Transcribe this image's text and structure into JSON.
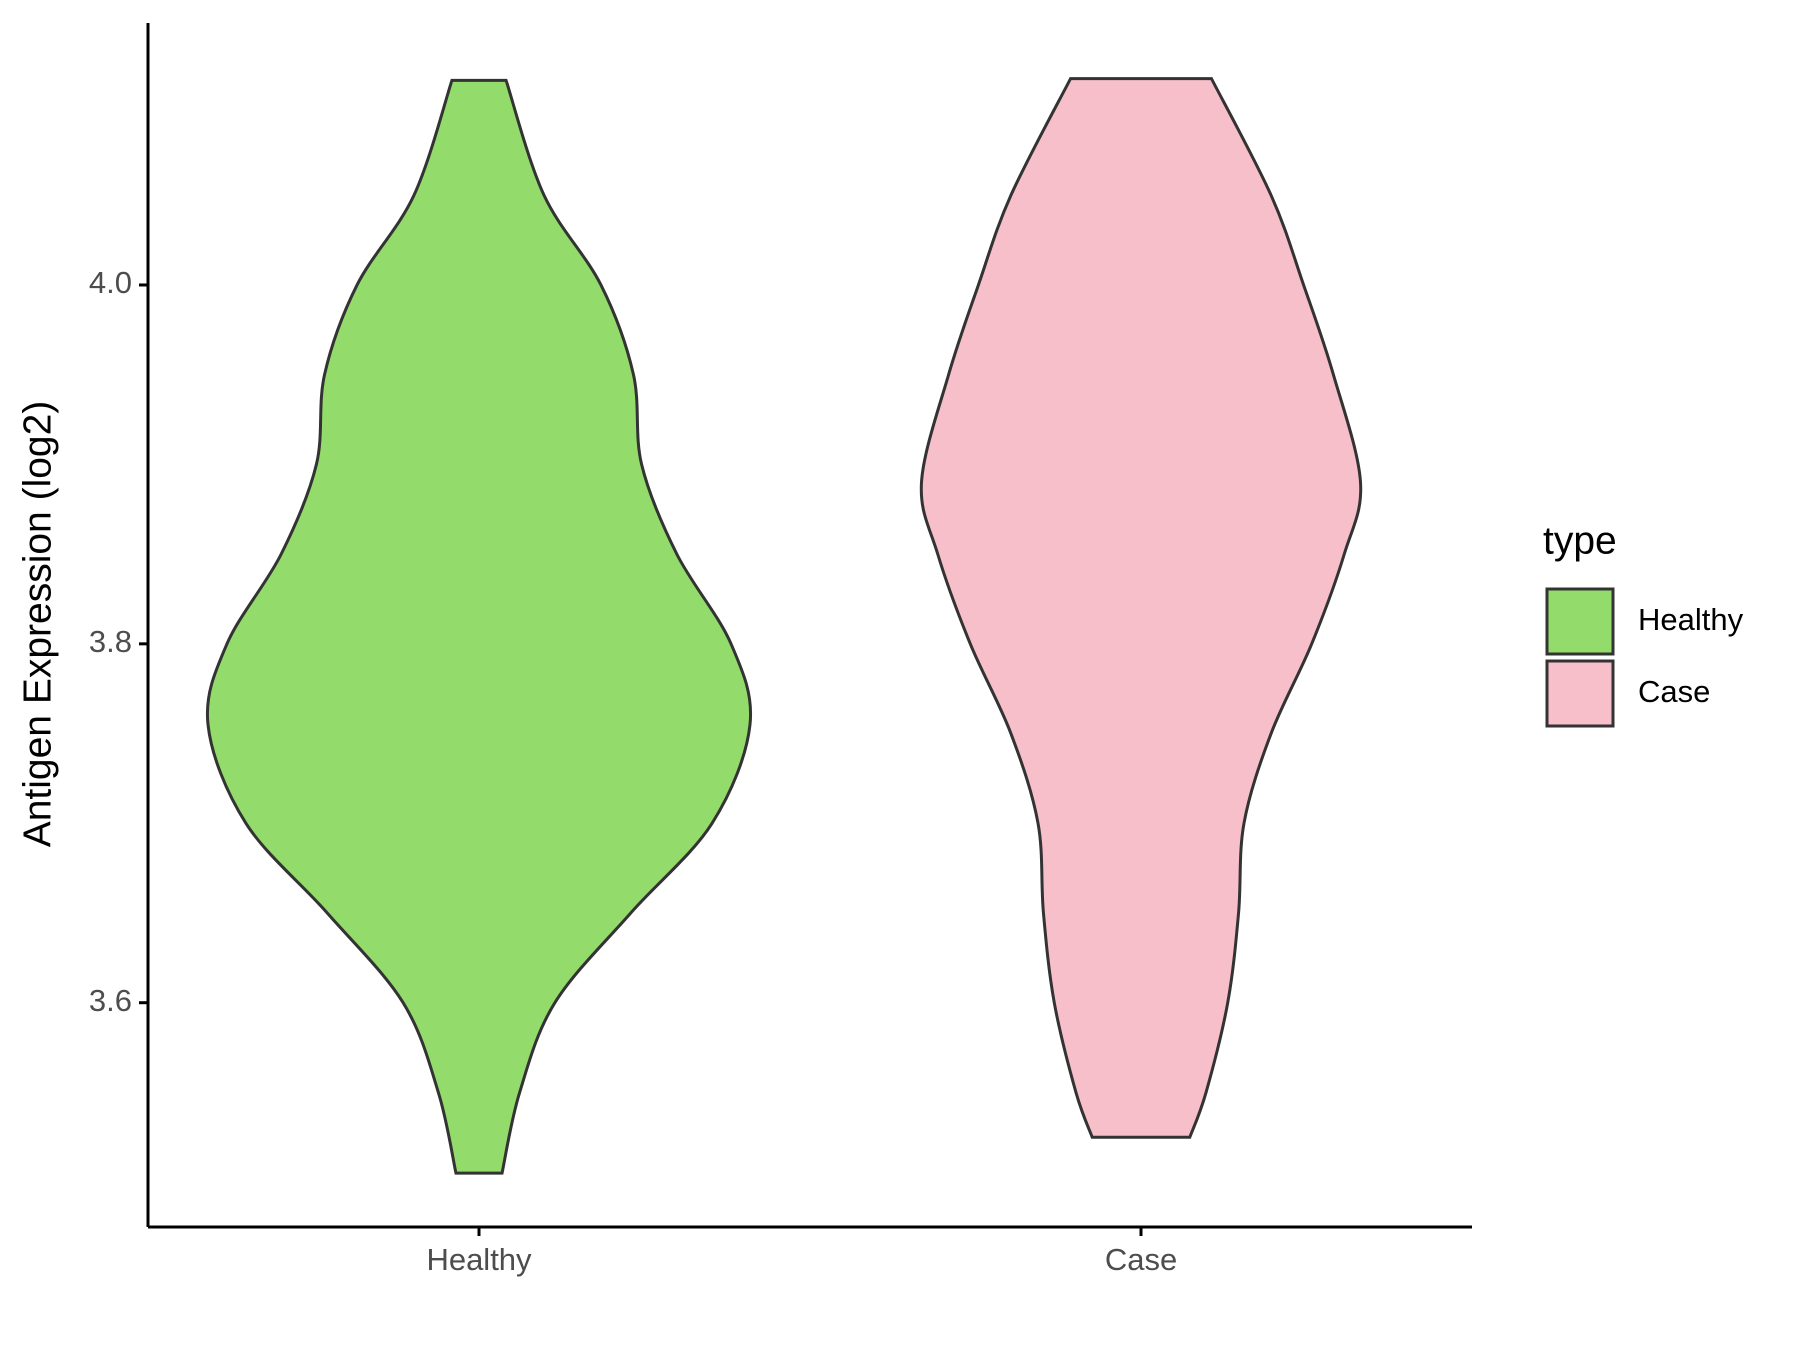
{
  "chart_data": {
    "type": "violin",
    "y_label": "Antigen Expression (log2)",
    "categories": [
      "Healthy",
      "Case"
    ],
    "series": [
      {
        "name": "Healthy",
        "color": "#93dc6b",
        "y": [
          4.114,
          4.05,
          4.0,
          3.95,
          3.9,
          3.85,
          3.8,
          3.755,
          3.7,
          3.65,
          3.6,
          3.55,
          3.505
        ],
        "width": [
          0.1,
          0.24,
          0.45,
          0.57,
          0.6,
          0.73,
          0.93,
          1.0,
          0.86,
          0.56,
          0.28,
          0.15,
          0.085
        ]
      },
      {
        "name": "Case",
        "color": "#f7bfca",
        "y": [
          4.115,
          4.05,
          4.0,
          3.95,
          3.89,
          3.85,
          3.8,
          3.75,
          3.7,
          3.65,
          3.6,
          3.55,
          3.525
        ],
        "width": [
          0.26,
          0.48,
          0.6,
          0.71,
          0.81,
          0.75,
          0.63,
          0.48,
          0.38,
          0.36,
          0.32,
          0.24,
          0.18
        ]
      }
    ],
    "ylim": [
      3.475,
      4.146
    ],
    "yticks": [
      3.6,
      3.8,
      {
        "value": 4,
        "label": "4.0"
      }
    ],
    "legend_title": "type",
    "legend_position": "right"
  }
}
